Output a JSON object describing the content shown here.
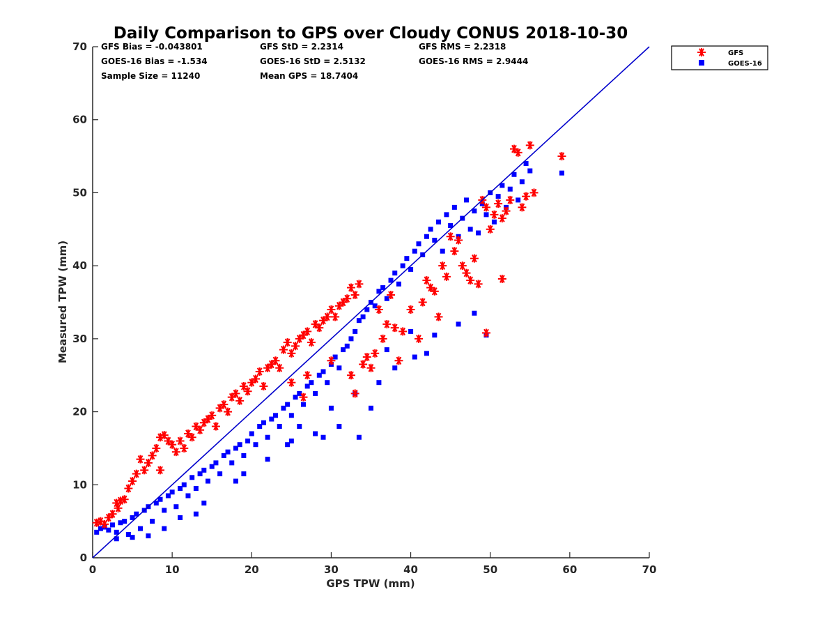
{
  "chart_data": {
    "type": "scatter",
    "title": "Daily Comparison to GPS over Cloudy CONUS 2018-10-30",
    "xlabel": "GPS TPW (mm)",
    "ylabel": "Measured TPW (mm)",
    "xlim": [
      0,
      70
    ],
    "ylim": [
      0,
      70
    ],
    "xticks": [
      "0",
      "10",
      "20",
      "30",
      "40",
      "50",
      "60",
      "70"
    ],
    "yticks": [
      "0",
      "10",
      "20",
      "30",
      "40",
      "50",
      "60",
      "70"
    ],
    "grid": false,
    "legend_position": "outside-top-right",
    "stats": {
      "gfs_bias": "GFS Bias = -0.043801",
      "goes_bias": "GOES-16 Bias = -1.534",
      "sample_size": "Sample Size = 11240",
      "gfs_std": "GFS StD = 2.2314",
      "goes_std": "GOES-16 StD = 2.5132",
      "mean_gps": "Mean GPS = 18.7404",
      "gfs_rms": "GFS RMS = 2.2318",
      "goes_rms": "GOES-16 RMS = 2.9444"
    },
    "reference_line": {
      "from": [
        0,
        0
      ],
      "to": [
        70,
        70
      ],
      "color": "#0000cc"
    },
    "series": [
      {
        "name": "GFS",
        "marker": "asterisk",
        "color": "#ff0000",
        "points": [
          [
            0.5,
            4.8
          ],
          [
            1.0,
            5.0
          ],
          [
            1.5,
            4.6
          ],
          [
            2.0,
            5.5
          ],
          [
            2.5,
            6.0
          ],
          [
            3.0,
            7.5
          ],
          [
            3.2,
            6.8
          ],
          [
            3.5,
            7.8
          ],
          [
            4.0,
            8.0
          ],
          [
            4.5,
            9.5
          ],
          [
            5.0,
            10.5
          ],
          [
            5.5,
            11.5
          ],
          [
            6.0,
            13.5
          ],
          [
            6.5,
            12.0
          ],
          [
            7.0,
            13.0
          ],
          [
            7.5,
            14.0
          ],
          [
            8.0,
            15.0
          ],
          [
            8.5,
            16.5
          ],
          [
            9.0,
            16.8
          ],
          [
            9.5,
            16.0
          ],
          [
            10.0,
            15.5
          ],
          [
            10.5,
            14.5
          ],
          [
            11.0,
            16.0
          ],
          [
            11.5,
            15.0
          ],
          [
            12.0,
            17.0
          ],
          [
            12.5,
            16.5
          ],
          [
            13.0,
            18.0
          ],
          [
            13.5,
            17.5
          ],
          [
            14.0,
            18.5
          ],
          [
            14.5,
            19.0
          ],
          [
            15.0,
            19.5
          ],
          [
            15.5,
            18.0
          ],
          [
            16.0,
            20.5
          ],
          [
            16.5,
            21.0
          ],
          [
            17.0,
            20.0
          ],
          [
            17.5,
            22.0
          ],
          [
            18.0,
            22.5
          ],
          [
            18.5,
            21.5
          ],
          [
            19.0,
            23.5
          ],
          [
            19.5,
            22.8
          ],
          [
            20.0,
            24.0
          ],
          [
            20.5,
            24.5
          ],
          [
            21.0,
            25.5
          ],
          [
            21.5,
            23.5
          ],
          [
            22.0,
            26.0
          ],
          [
            22.5,
            26.5
          ],
          [
            23.0,
            27.0
          ],
          [
            23.5,
            26.0
          ],
          [
            24.0,
            28.5
          ],
          [
            24.5,
            29.5
          ],
          [
            25.0,
            28.0
          ],
          [
            25.5,
            29.0
          ],
          [
            26.0,
            30.0
          ],
          [
            26.5,
            30.5
          ],
          [
            27.0,
            31.0
          ],
          [
            27.5,
            29.5
          ],
          [
            28.0,
            32.0
          ],
          [
            28.5,
            31.5
          ],
          [
            29.0,
            32.5
          ],
          [
            29.5,
            33.0
          ],
          [
            30.0,
            34.0
          ],
          [
            30.5,
            33.0
          ],
          [
            31.0,
            34.5
          ],
          [
            31.5,
            35.0
          ],
          [
            32.0,
            35.5
          ],
          [
            32.5,
            37.0
          ],
          [
            33.0,
            36.0
          ],
          [
            33.5,
            37.5
          ],
          [
            34.0,
            26.5
          ],
          [
            34.5,
            27.5
          ],
          [
            35.0,
            26.0
          ],
          [
            35.5,
            28.0
          ],
          [
            32.5,
            25.0
          ],
          [
            33.0,
            22.5
          ],
          [
            36.5,
            30.0
          ],
          [
            37.0,
            32.0
          ],
          [
            38.0,
            31.5
          ],
          [
            38.5,
            27.0
          ],
          [
            39.0,
            31.0
          ],
          [
            40.0,
            34.0
          ],
          [
            41.0,
            30.0
          ],
          [
            41.5,
            35.0
          ],
          [
            42.0,
            38.0
          ],
          [
            42.5,
            37.0
          ],
          [
            43.0,
            36.5
          ],
          [
            43.5,
            33.0
          ],
          [
            44.0,
            40.0
          ],
          [
            44.5,
            38.5
          ],
          [
            45.0,
            44.0
          ],
          [
            45.5,
            42.0
          ],
          [
            46.0,
            43.5
          ],
          [
            46.5,
            40.0
          ],
          [
            47.0,
            39.0
          ],
          [
            47.5,
            38.0
          ],
          [
            48.0,
            41.0
          ],
          [
            48.5,
            37.5
          ],
          [
            49.0,
            49.0
          ],
          [
            49.5,
            48.0
          ],
          [
            50.0,
            45.0
          ],
          [
            50.5,
            47.0
          ],
          [
            51.0,
            48.5
          ],
          [
            51.5,
            46.5
          ],
          [
            52.0,
            47.5
          ],
          [
            52.5,
            49.0
          ],
          [
            53.0,
            56.0
          ],
          [
            53.5,
            55.5
          ],
          [
            54.0,
            48.0
          ],
          [
            54.5,
            49.5
          ],
          [
            55.0,
            56.5
          ],
          [
            55.5,
            50.0
          ],
          [
            59.0,
            55.0
          ],
          [
            49.5,
            30.8
          ],
          [
            51.5,
            38.2
          ],
          [
            36.0,
            34.0
          ],
          [
            37.5,
            36.0
          ],
          [
            26.5,
            22.0
          ],
          [
            27.0,
            25.0
          ],
          [
            25.0,
            24.0
          ],
          [
            30.0,
            27.0
          ],
          [
            8.5,
            12.0
          ]
        ]
      },
      {
        "name": "GOES-16",
        "marker": "square",
        "color": "#0000ff",
        "points": [
          [
            0.5,
            3.5
          ],
          [
            1.0,
            4.0
          ],
          [
            1.5,
            4.2
          ],
          [
            2.0,
            3.8
          ],
          [
            2.5,
            4.5
          ],
          [
            3.0,
            3.5
          ],
          [
            3.5,
            4.8
          ],
          [
            4.0,
            5.0
          ],
          [
            4.5,
            3.2
          ],
          [
            5.0,
            5.5
          ],
          [
            5.5,
            6.0
          ],
          [
            6.0,
            4.0
          ],
          [
            6.5,
            6.5
          ],
          [
            7.0,
            7.0
          ],
          [
            7.5,
            5.0
          ],
          [
            8.0,
            7.5
          ],
          [
            8.5,
            8.0
          ],
          [
            9.0,
            6.5
          ],
          [
            9.5,
            8.5
          ],
          [
            10.0,
            9.0
          ],
          [
            10.5,
            7.0
          ],
          [
            11.0,
            9.5
          ],
          [
            11.5,
            10.0
          ],
          [
            12.0,
            8.5
          ],
          [
            12.5,
            11.0
          ],
          [
            13.0,
            9.5
          ],
          [
            13.5,
            11.5
          ],
          [
            14.0,
            12.0
          ],
          [
            14.5,
            10.5
          ],
          [
            15.0,
            12.5
          ],
          [
            15.5,
            13.0
          ],
          [
            16.0,
            11.5
          ],
          [
            16.5,
            14.0
          ],
          [
            17.0,
            14.5
          ],
          [
            17.5,
            13.0
          ],
          [
            18.0,
            15.0
          ],
          [
            18.5,
            15.5
          ],
          [
            19.0,
            14.0
          ],
          [
            19.5,
            16.0
          ],
          [
            20.0,
            17.0
          ],
          [
            20.5,
            15.5
          ],
          [
            21.0,
            18.0
          ],
          [
            21.5,
            18.5
          ],
          [
            22.0,
            16.5
          ],
          [
            22.5,
            19.0
          ],
          [
            23.0,
            19.5
          ],
          [
            23.5,
            18.0
          ],
          [
            24.0,
            20.5
          ],
          [
            24.5,
            21.0
          ],
          [
            25.0,
            19.5
          ],
          [
            25.5,
            22.0
          ],
          [
            26.0,
            22.5
          ],
          [
            26.5,
            21.0
          ],
          [
            27.0,
            23.5
          ],
          [
            27.5,
            24.0
          ],
          [
            28.0,
            22.5
          ],
          [
            28.5,
            25.0
          ],
          [
            29.0,
            25.5
          ],
          [
            29.5,
            24.0
          ],
          [
            30.0,
            26.5
          ],
          [
            30.5,
            27.5
          ],
          [
            31.0,
            26.0
          ],
          [
            31.5,
            28.5
          ],
          [
            32.0,
            29.0
          ],
          [
            32.5,
            30.0
          ],
          [
            33.0,
            31.0
          ],
          [
            33.5,
            32.5
          ],
          [
            34.0,
            33.0
          ],
          [
            34.5,
            34.0
          ],
          [
            35.0,
            35.0
          ],
          [
            35.5,
            34.5
          ],
          [
            36.0,
            36.5
          ],
          [
            36.5,
            37.0
          ],
          [
            37.0,
            35.5
          ],
          [
            37.5,
            38.0
          ],
          [
            38.0,
            39.0
          ],
          [
            38.5,
            37.5
          ],
          [
            39.0,
            40.0
          ],
          [
            39.5,
            41.0
          ],
          [
            40.0,
            39.5
          ],
          [
            40.5,
            42.0
          ],
          [
            41.0,
            43.0
          ],
          [
            41.5,
            41.5
          ],
          [
            42.0,
            44.0
          ],
          [
            42.5,
            45.0
          ],
          [
            43.0,
            43.5
          ],
          [
            43.5,
            46.0
          ],
          [
            44.0,
            42.0
          ],
          [
            44.5,
            47.0
          ],
          [
            45.0,
            45.5
          ],
          [
            45.5,
            48.0
          ],
          [
            46.0,
            44.0
          ],
          [
            46.5,
            46.5
          ],
          [
            47.0,
            49.0
          ],
          [
            47.5,
            45.0
          ],
          [
            48.0,
            47.5
          ],
          [
            48.5,
            44.5
          ],
          [
            49.0,
            48.5
          ],
          [
            49.5,
            47.0
          ],
          [
            50.0,
            50.0
          ],
          [
            50.5,
            46.0
          ],
          [
            51.0,
            49.5
          ],
          [
            51.5,
            51.0
          ],
          [
            52.0,
            48.0
          ],
          [
            52.5,
            50.5
          ],
          [
            53.0,
            52.5
          ],
          [
            53.5,
            49.0
          ],
          [
            54.0,
            51.5
          ],
          [
            54.5,
            54.0
          ],
          [
            55.0,
            53.0
          ],
          [
            59.0,
            52.7
          ],
          [
            49.5,
            30.5
          ],
          [
            42.0,
            28.0
          ],
          [
            40.5,
            27.5
          ],
          [
            33.0,
            22.5
          ],
          [
            33.5,
            16.5
          ],
          [
            35.0,
            20.5
          ],
          [
            24.5,
            15.5
          ],
          [
            25.0,
            16.0
          ],
          [
            28.0,
            17.0
          ],
          [
            29.0,
            16.5
          ],
          [
            31.0,
            18.0
          ],
          [
            36.0,
            24.0
          ],
          [
            38.0,
            26.0
          ],
          [
            37.0,
            28.5
          ],
          [
            43.0,
            30.5
          ],
          [
            46.0,
            32.0
          ],
          [
            48.0,
            33.5
          ],
          [
            40.0,
            31.0
          ],
          [
            18.0,
            10.5
          ],
          [
            19.0,
            11.5
          ],
          [
            14.0,
            7.5
          ],
          [
            13.0,
            6.0
          ],
          [
            11.0,
            5.5
          ],
          [
            9.0,
            4.0
          ],
          [
            7.0,
            3.0
          ],
          [
            5.0,
            2.8
          ],
          [
            3.0,
            2.6
          ],
          [
            22.0,
            13.5
          ],
          [
            26.0,
            18.0
          ],
          [
            30.0,
            20.5
          ]
        ]
      }
    ]
  }
}
